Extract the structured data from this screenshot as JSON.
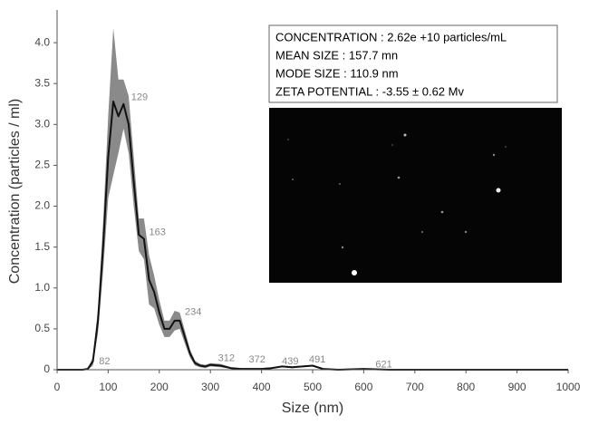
{
  "chart_data": {
    "type": "line",
    "xlabel": "Size (nm)",
    "ylabel": "Concentration (particles / ml)",
    "x": [
      0,
      50,
      60,
      70,
      80,
      90,
      100,
      110,
      120,
      130,
      140,
      150,
      160,
      170,
      180,
      190,
      200,
      210,
      220,
      230,
      240,
      250,
      260,
      270,
      280,
      290,
      300,
      320,
      340,
      360,
      380,
      400,
      420,
      440,
      460,
      480,
      500,
      520,
      550,
      600,
      650,
      700,
      800,
      900,
      1000
    ],
    "values": [
      0,
      0,
      0.01,
      0.1,
      0.6,
      1.5,
      2.6,
      3.28,
      3.1,
      3.25,
      3.0,
      2.3,
      1.65,
      1.6,
      1.1,
      0.95,
      0.7,
      0.5,
      0.5,
      0.6,
      0.6,
      0.4,
      0.2,
      0.08,
      0.05,
      0.04,
      0.06,
      0.05,
      0.02,
      0.01,
      0.01,
      0.01,
      0.02,
      0.04,
      0.03,
      0.04,
      0.05,
      0.01,
      0,
      0.01,
      0,
      0,
      0,
      0,
      0
    ],
    "errors": [
      0,
      0,
      0.01,
      0.05,
      0.15,
      0.3,
      0.5,
      0.9,
      0.45,
      0.3,
      0.35,
      0.3,
      0.2,
      0.25,
      0.3,
      0.2,
      0.15,
      0.1,
      0.1,
      0.12,
      0.1,
      0.08,
      0.05,
      0.03,
      0.02,
      0.02,
      0.02,
      0.02,
      0.01,
      0.01,
      0.01,
      0.01,
      0.01,
      0.01,
      0.01,
      0.01,
      0.01,
      0.01,
      0,
      0,
      0,
      0,
      0,
      0,
      0
    ],
    "color": "#111111",
    "error_color": "#8a8a8a",
    "xlim": [
      0,
      1000
    ],
    "xticks": [
      0,
      100,
      200,
      300,
      400,
      500,
      600,
      700,
      800,
      900,
      1000
    ],
    "ylim": [
      0,
      4.4
    ],
    "yticks": [
      0,
      0.5,
      {
        "value": 1,
        "label": "1.0"
      },
      1.5,
      {
        "value": 2,
        "label": "2.0"
      },
      2.5,
      {
        "value": 3,
        "label": "3.0"
      },
      3.5,
      {
        "value": 4,
        "label": "4.0"
      }
    ],
    "annotations": [
      {
        "text": "82",
        "x": 82,
        "y": 0.1
      },
      {
        "text": "129",
        "x": 145,
        "y": 3.33
      },
      {
        "text": "163",
        "x": 180,
        "y": 1.68
      },
      {
        "text": "234",
        "x": 250,
        "y": 0.7
      },
      {
        "text": "312",
        "x": 315,
        "y": 0.14
      },
      {
        "text": "372",
        "x": 375,
        "y": 0.12
      },
      {
        "text": "439",
        "x": 440,
        "y": 0.1
      },
      {
        "text": "491",
        "x": 493,
        "y": 0.12
      },
      {
        "text": "621",
        "x": 623,
        "y": 0.06
      }
    ],
    "info": [
      "CONCENTRATION : 2.62e +10 particles/mL",
      "MEAN SIZE : 157.7 mn",
      "MODE SIZE : 110.9 nm",
      "ZETA POTENTIAL : -3.55 ± 0.62 Mv"
    ]
  }
}
